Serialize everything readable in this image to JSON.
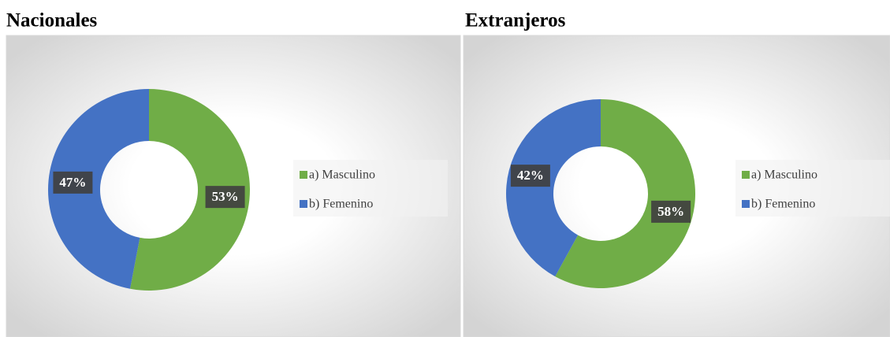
{
  "chart_data": [
    {
      "type": "pie",
      "title": "Nacionales",
      "categories": [
        "a) Masculino",
        "b) Femenino"
      ],
      "values": [
        53,
        47
      ],
      "value_labels": [
        "53%",
        "47%"
      ],
      "colors": [
        "#70ad47",
        "#4472c4"
      ],
      "legend": "right"
    },
    {
      "type": "pie",
      "title": "Extranjeros",
      "categories": [
        "a) Masculino",
        "b) Femenino"
      ],
      "values": [
        58,
        42
      ],
      "value_labels": [
        "58%",
        "42%"
      ],
      "colors": [
        "#70ad47",
        "#4472c4"
      ],
      "legend": "right"
    }
  ]
}
